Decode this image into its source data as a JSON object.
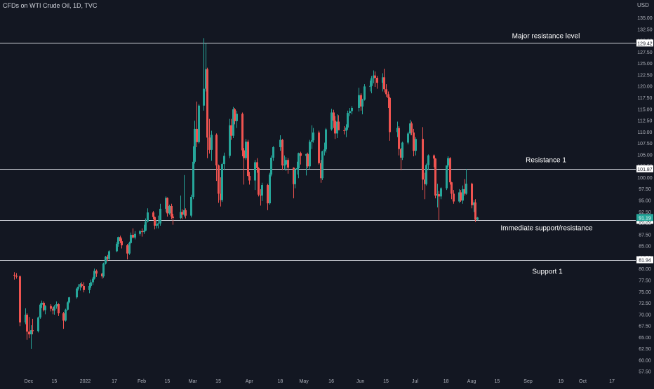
{
  "header": {
    "symbol_title": "CFDs on WTI Crude Oil, 1D, TVC",
    "currency": "USD"
  },
  "colors": {
    "background": "#131722",
    "up": "#26a69a",
    "down": "#ef5350",
    "text": "#d1d4dc",
    "axis_text": "#b2b5be",
    "level_line": "#d1d4dc",
    "last_price_bg": "#26a69a"
  },
  "chart_data": {
    "type": "candlestick",
    "ylim": [
      56,
      136
    ],
    "y_ticks": [
      57.5,
      60.0,
      62.5,
      65.0,
      67.5,
      70.0,
      72.5,
      75.0,
      77.5,
      80.0,
      82.5,
      85.0,
      87.5,
      90.0,
      92.5,
      95.0,
      97.5,
      100.0,
      102.5,
      105.0,
      107.5,
      110.0,
      112.5,
      115.0,
      117.5,
      120.0,
      122.5,
      125.0,
      127.5,
      130.0,
      132.5,
      135.0
    ],
    "x_ticks": [
      {
        "label": "Dec",
        "date": "2021-12-01"
      },
      {
        "label": "15",
        "date": "2021-12-15"
      },
      {
        "label": "2022",
        "date": "2022-01-01"
      },
      {
        "label": "17",
        "date": "2022-01-17"
      },
      {
        "label": "Feb",
        "date": "2022-02-01"
      },
      {
        "label": "15",
        "date": "2022-02-15"
      },
      {
        "label": "Mar",
        "date": "2022-03-01"
      },
      {
        "label": "15",
        "date": "2022-03-15"
      },
      {
        "label": "Apr",
        "date": "2022-04-01"
      },
      {
        "label": "18",
        "date": "2022-04-18"
      },
      {
        "label": "May",
        "date": "2022-05-01"
      },
      {
        "label": "16",
        "date": "2022-05-16"
      },
      {
        "label": "Jun",
        "date": "2022-06-01"
      },
      {
        "label": "15",
        "date": "2022-06-15"
      },
      {
        "label": "Jul",
        "date": "2022-07-01"
      },
      {
        "label": "18",
        "date": "2022-07-18"
      },
      {
        "label": "Aug",
        "date": "2022-08-01"
      },
      {
        "label": "15",
        "date": "2022-08-15"
      },
      {
        "label": "Sep",
        "date": "2022-09-01"
      },
      {
        "label": "19",
        "date": "2022-09-19"
      },
      {
        "label": "Oct",
        "date": "2022-10-01"
      },
      {
        "label": "17",
        "date": "2022-10-17"
      }
    ],
    "levels": [
      {
        "name": "Major resistance level",
        "value": 129.42,
        "label": "129.42"
      },
      {
        "name": "Resistance 1",
        "value": 101.87,
        "label": "101.87"
      },
      {
        "name": "Immediate support/resistance",
        "value": 90.58,
        "label": "90.58"
      },
      {
        "name": "Support 1",
        "value": 81.94,
        "label": "81.94"
      }
    ],
    "last_price": {
      "value": 91.19,
      "label": "91.19"
    },
    "candles": [
      [
        "2021-11-23",
        78.6,
        79.2,
        77.6,
        78.4
      ],
      [
        "2021-11-24",
        78.4,
        79.0,
        77.8,
        78.3
      ],
      [
        "2021-11-26",
        78.3,
        78.5,
        67.4,
        68.2
      ],
      [
        "2021-11-29",
        68.2,
        71.3,
        67.8,
        69.9
      ],
      [
        "2021-11-30",
        69.9,
        70.2,
        64.4,
        66.2
      ],
      [
        "2021-12-01",
        66.2,
        69.4,
        64.8,
        65.6
      ],
      [
        "2021-12-02",
        65.6,
        67.6,
        62.4,
        66.5
      ],
      [
        "2021-12-03",
        66.5,
        69.0,
        65.6,
        66.3
      ],
      [
        "2021-12-06",
        66.3,
        69.5,
        66.0,
        69.3
      ],
      [
        "2021-12-07",
        69.3,
        72.4,
        69.0,
        72.1
      ],
      [
        "2021-12-08",
        72.1,
        73.0,
        71.4,
        72.5
      ],
      [
        "2021-12-09",
        72.5,
        72.8,
        70.6,
        70.9
      ],
      [
        "2021-12-10",
        70.9,
        72.0,
        70.0,
        71.8
      ],
      [
        "2021-12-13",
        71.8,
        72.2,
        70.6,
        71.2
      ],
      [
        "2021-12-14",
        71.2,
        71.6,
        70.0,
        70.8
      ],
      [
        "2021-12-15",
        70.8,
        72.0,
        69.9,
        71.7
      ],
      [
        "2021-12-16",
        71.7,
        72.8,
        71.2,
        72.2
      ],
      [
        "2021-12-17",
        72.2,
        72.4,
        69.6,
        70.2
      ],
      [
        "2021-12-20",
        70.2,
        70.5,
        66.8,
        68.6
      ],
      [
        "2021-12-21",
        68.6,
        71.2,
        68.4,
        71.0
      ],
      [
        "2021-12-22",
        71.0,
        72.8,
        70.8,
        72.6
      ],
      [
        "2021-12-23",
        72.6,
        73.8,
        72.4,
        73.7
      ],
      [
        "2021-12-27",
        73.7,
        75.8,
        73.4,
        75.6
      ],
      [
        "2021-12-28",
        75.6,
        76.6,
        75.2,
        76.0
      ],
      [
        "2021-12-29",
        76.0,
        76.8,
        75.2,
        76.6
      ],
      [
        "2021-12-30",
        76.6,
        77.0,
        75.8,
        76.2
      ],
      [
        "2021-12-31",
        76.2,
        77.0,
        74.8,
        75.3
      ],
      [
        "2022-01-03",
        75.3,
        76.8,
        74.6,
        76.2
      ],
      [
        "2022-01-04",
        76.2,
        77.6,
        75.8,
        77.0
      ],
      [
        "2022-01-05",
        77.0,
        78.2,
        76.4,
        77.8
      ],
      [
        "2022-01-06",
        77.8,
        80.0,
        77.6,
        79.5
      ],
      [
        "2022-01-07",
        79.5,
        79.8,
        78.2,
        78.9
      ],
      [
        "2022-01-10",
        78.9,
        79.0,
        77.8,
        78.3
      ],
      [
        "2022-01-11",
        78.3,
        81.3,
        78.0,
        81.1
      ],
      [
        "2022-01-12",
        81.1,
        82.8,
        80.9,
        82.6
      ],
      [
        "2022-01-13",
        82.6,
        83.0,
        81.6,
        82.1
      ],
      [
        "2022-01-14",
        82.1,
        84.0,
        81.9,
        83.8
      ],
      [
        "2022-01-18",
        83.8,
        85.8,
        83.6,
        85.4
      ],
      [
        "2022-01-19",
        85.4,
        87.0,
        84.8,
        86.9
      ],
      [
        "2022-01-20",
        86.9,
        87.2,
        85.6,
        86.0
      ],
      [
        "2022-01-21",
        86.0,
        86.6,
        84.4,
        85.1
      ],
      [
        "2022-01-24",
        85.1,
        85.4,
        82.0,
        83.3
      ],
      [
        "2022-01-25",
        83.3,
        85.9,
        83.0,
        85.6
      ],
      [
        "2022-01-26",
        85.6,
        87.9,
        85.5,
        87.4
      ],
      [
        "2022-01-27",
        87.4,
        88.8,
        86.6,
        86.8
      ],
      [
        "2022-01-28",
        86.8,
        88.2,
        86.4,
        87.6
      ],
      [
        "2022-01-31",
        87.6,
        88.4,
        87.2,
        88.2
      ],
      [
        "2022-02-01",
        88.2,
        88.8,
        87.0,
        88.0
      ],
      [
        "2022-02-02",
        88.0,
        89.6,
        87.6,
        88.3
      ],
      [
        "2022-02-03",
        88.3,
        91.0,
        88.2,
        90.3
      ],
      [
        "2022-02-04",
        90.3,
        93.2,
        90.1,
        92.3
      ],
      [
        "2022-02-07",
        92.3,
        92.6,
        90.8,
        91.3
      ],
      [
        "2022-02-08",
        91.3,
        91.4,
        88.6,
        89.4
      ],
      [
        "2022-02-09",
        89.4,
        90.6,
        88.8,
        89.7
      ],
      [
        "2022-02-10",
        89.7,
        91.6,
        88.8,
        89.9
      ],
      [
        "2022-02-11",
        89.9,
        94.2,
        89.4,
        93.1
      ],
      [
        "2022-02-14",
        93.1,
        95.8,
        92.4,
        95.5
      ],
      [
        "2022-02-15",
        95.5,
        95.6,
        91.4,
        92.1
      ],
      [
        "2022-02-16",
        92.1,
        94.0,
        91.8,
        93.7
      ],
      [
        "2022-02-17",
        93.7,
        94.2,
        90.8,
        91.4
      ],
      [
        "2022-02-18",
        91.4,
        92.0,
        89.6,
        91.1
      ],
      [
        "2022-02-22",
        91.1,
        96.0,
        90.8,
        92.4
      ],
      [
        "2022-02-23",
        92.4,
        93.0,
        90.8,
        91.8
      ],
      [
        "2022-02-24",
        91.8,
        100.5,
        91.3,
        92.8
      ],
      [
        "2022-02-25",
        92.8,
        93.2,
        91.0,
        91.6
      ],
      [
        "2022-02-28",
        91.6,
        96.2,
        91.2,
        95.7
      ],
      [
        "2022-03-01",
        95.7,
        106.8,
        95.2,
        103.4
      ],
      [
        "2022-03-02",
        103.4,
        112.4,
        103.0,
        110.6
      ],
      [
        "2022-03-03",
        110.6,
        116.6,
        106.6,
        107.7
      ],
      [
        "2022-03-04",
        107.7,
        116.0,
        107.4,
        115.7
      ],
      [
        "2022-03-07",
        115.7,
        130.5,
        114.6,
        119.4
      ],
      [
        "2022-03-08",
        119.4,
        129.4,
        118.8,
        123.7
      ],
      [
        "2022-03-09",
        123.7,
        124.0,
        104.2,
        108.7
      ],
      [
        "2022-03-10",
        108.7,
        112.8,
        105.2,
        106.0
      ],
      [
        "2022-03-11",
        106.0,
        110.2,
        103.6,
        109.3
      ],
      [
        "2022-03-14",
        109.3,
        109.6,
        99.2,
        102.6
      ],
      [
        "2022-03-15",
        102.6,
        102.8,
        94.4,
        96.4
      ],
      [
        "2022-03-16",
        96.4,
        100.0,
        93.6,
        95.0
      ],
      [
        "2022-03-17",
        95.0,
        103.2,
        94.6,
        102.9
      ],
      [
        "2022-03-18",
        102.9,
        105.4,
        101.6,
        104.7
      ],
      [
        "2022-03-21",
        104.7,
        112.8,
        104.2,
        111.4
      ],
      [
        "2022-03-22",
        111.4,
        112.8,
        108.2,
        109.1
      ],
      [
        "2022-03-23",
        109.1,
        115.4,
        108.6,
        114.9
      ],
      [
        "2022-03-24",
        114.9,
        115.2,
        111.6,
        112.3
      ],
      [
        "2022-03-25",
        112.3,
        114.6,
        110.8,
        113.9
      ],
      [
        "2022-03-28",
        113.9,
        114.2,
        104.6,
        105.9
      ],
      [
        "2022-03-29",
        105.9,
        106.4,
        98.4,
        104.2
      ],
      [
        "2022-03-30",
        104.2,
        108.4,
        103.8,
        107.8
      ],
      [
        "2022-03-31",
        107.8,
        108.2,
        100.2,
        100.3
      ],
      [
        "2022-04-01",
        100.3,
        101.2,
        98.4,
        99.3
      ],
      [
        "2022-04-04",
        99.3,
        103.8,
        97.2,
        103.3
      ],
      [
        "2022-04-05",
        103.3,
        104.2,
        101.0,
        102.0
      ],
      [
        "2022-04-06",
        102.0,
        102.2,
        95.8,
        96.2
      ],
      [
        "2022-04-07",
        96.2,
        97.4,
        93.8,
        96.0
      ],
      [
        "2022-04-08",
        96.0,
        98.8,
        94.8,
        98.3
      ],
      [
        "2022-04-11",
        98.3,
        98.6,
        92.8,
        94.3
      ],
      [
        "2022-04-12",
        94.3,
        101.0,
        94.0,
        100.6
      ],
      [
        "2022-04-13",
        100.6,
        104.8,
        100.2,
        104.3
      ],
      [
        "2022-04-14",
        104.3,
        106.8,
        103.6,
        106.6
      ],
      [
        "2022-04-18",
        106.6,
        109.2,
        105.8,
        108.2
      ],
      [
        "2022-04-19",
        108.2,
        108.4,
        101.6,
        102.6
      ],
      [
        "2022-04-20",
        102.6,
        104.8,
        101.8,
        102.8
      ],
      [
        "2022-04-21",
        102.8,
        104.4,
        101.4,
        103.8
      ],
      [
        "2022-04-22",
        103.8,
        104.2,
        100.8,
        102.1
      ],
      [
        "2022-04-25",
        102.1,
        102.2,
        95.4,
        98.5
      ],
      [
        "2022-04-26",
        98.5,
        102.0,
        97.6,
        101.7
      ],
      [
        "2022-04-27",
        101.7,
        103.4,
        100.6,
        102.0
      ],
      [
        "2022-04-28",
        102.0,
        105.4,
        99.8,
        105.3
      ],
      [
        "2022-04-29",
        105.3,
        105.6,
        102.8,
        104.7
      ],
      [
        "2022-05-02",
        104.7,
        105.2,
        100.4,
        105.1
      ],
      [
        "2022-05-03",
        105.1,
        105.4,
        102.0,
        102.4
      ],
      [
        "2022-05-04",
        102.4,
        108.2,
        101.8,
        107.8
      ],
      [
        "2022-05-05",
        107.8,
        111.4,
        106.2,
        108.1
      ],
      [
        "2022-05-06",
        108.1,
        110.8,
        107.6,
        109.8
      ],
      [
        "2022-05-09",
        109.8,
        110.2,
        102.8,
        103.1
      ],
      [
        "2022-05-10",
        103.1,
        103.8,
        98.8,
        99.8
      ],
      [
        "2022-05-11",
        99.8,
        105.8,
        99.4,
        105.7
      ],
      [
        "2022-05-12",
        105.7,
        107.6,
        104.8,
        106.1
      ],
      [
        "2022-05-13",
        106.1,
        110.8,
        105.4,
        110.5
      ],
      [
        "2022-05-16",
        110.5,
        115.0,
        110.2,
        114.2
      ],
      [
        "2022-05-17",
        114.2,
        114.8,
        110.8,
        112.4
      ],
      [
        "2022-05-18",
        112.4,
        113.4,
        108.4,
        109.6
      ],
      [
        "2022-05-19",
        109.6,
        113.8,
        108.6,
        112.2
      ],
      [
        "2022-05-20",
        112.2,
        113.6,
        110.6,
        110.3
      ],
      [
        "2022-05-23",
        110.3,
        111.2,
        109.4,
        110.2
      ],
      [
        "2022-05-24",
        110.2,
        111.6,
        108.8,
        110.9
      ],
      [
        "2022-05-25",
        110.9,
        114.6,
        110.4,
        114.1
      ],
      [
        "2022-05-26",
        114.1,
        115.2,
        113.4,
        114.5
      ],
      [
        "2022-05-27",
        114.5,
        115.6,
        113.8,
        115.2
      ],
      [
        "2022-05-31",
        115.2,
        119.6,
        114.4,
        118.0
      ],
      [
        "2022-06-01",
        118.0,
        118.4,
        114.6,
        115.5
      ],
      [
        "2022-06-02",
        115.5,
        117.2,
        113.8,
        117.0
      ],
      [
        "2022-06-03",
        117.0,
        120.4,
        116.8,
        119.9
      ],
      [
        "2022-06-06",
        119.9,
        121.2,
        118.8,
        120.0
      ],
      [
        "2022-06-07",
        120.0,
        122.2,
        118.4,
        121.7
      ],
      [
        "2022-06-08",
        121.7,
        123.4,
        120.6,
        122.3
      ],
      [
        "2022-06-09",
        122.3,
        123.2,
        119.8,
        121.8
      ],
      [
        "2022-06-10",
        121.8,
        122.2,
        119.4,
        120.7
      ],
      [
        "2022-06-13",
        120.7,
        122.8,
        118.8,
        121.9
      ],
      [
        "2022-06-14",
        121.9,
        123.8,
        118.6,
        119.3
      ],
      [
        "2022-06-15",
        119.3,
        120.4,
        117.6,
        118.2
      ],
      [
        "2022-06-16",
        118.2,
        118.8,
        115.2,
        117.4
      ],
      [
        "2022-06-17",
        117.4,
        117.6,
        108.0,
        109.9
      ],
      [
        "2022-06-21",
        109.9,
        112.2,
        108.8,
        110.8
      ],
      [
        "2022-06-22",
        110.8,
        111.2,
        104.8,
        106.2
      ],
      [
        "2022-06-23",
        106.2,
        106.4,
        101.6,
        104.3
      ],
      [
        "2022-06-24",
        104.3,
        107.8,
        103.8,
        107.6
      ],
      [
        "2022-06-27",
        107.6,
        110.0,
        107.2,
        109.6
      ],
      [
        "2022-06-28",
        109.6,
        112.6,
        109.2,
        111.8
      ],
      [
        "2022-06-29",
        111.8,
        112.2,
        109.2,
        109.8
      ],
      [
        "2022-06-30",
        109.8,
        110.6,
        104.6,
        105.8
      ],
      [
        "2022-07-01",
        105.8,
        108.8,
        104.8,
        108.4
      ],
      [
        "2022-07-05",
        108.4,
        111.0,
        97.2,
        99.5
      ],
      [
        "2022-07-06",
        99.5,
        101.0,
        95.2,
        98.5
      ],
      [
        "2022-07-07",
        98.5,
        103.0,
        98.2,
        102.7
      ],
      [
        "2022-07-08",
        102.7,
        105.0,
        101.6,
        104.8
      ],
      [
        "2022-07-11",
        104.8,
        105.0,
        102.2,
        104.1
      ],
      [
        "2022-07-12",
        104.1,
        104.2,
        95.4,
        96.0
      ],
      [
        "2022-07-13",
        96.0,
        98.6,
        93.4,
        96.3
      ],
      [
        "2022-07-14",
        96.3,
        97.0,
        90.6,
        95.8
      ],
      [
        "2022-07-15",
        95.8,
        97.8,
        95.2,
        97.6
      ],
      [
        "2022-07-18",
        97.6,
        102.4,
        97.2,
        102.6
      ],
      [
        "2022-07-19",
        102.6,
        104.6,
        102.2,
        104.2
      ],
      [
        "2022-07-20",
        104.2,
        104.4,
        98.4,
        98.9
      ],
      [
        "2022-07-21",
        98.9,
        99.0,
        95.2,
        96.4
      ],
      [
        "2022-07-22",
        96.4,
        97.2,
        94.2,
        94.7
      ],
      [
        "2022-07-25",
        94.7,
        97.4,
        94.4,
        96.7
      ],
      [
        "2022-07-26",
        96.7,
        97.2,
        94.6,
        94.9
      ],
      [
        "2022-07-27",
        94.9,
        98.2,
        94.2,
        97.4
      ],
      [
        "2022-07-28",
        97.4,
        99.6,
        96.0,
        96.4
      ],
      [
        "2022-07-29",
        96.4,
        101.8,
        96.2,
        98.6
      ],
      [
        "2022-08-01",
        98.6,
        98.8,
        93.2,
        93.9
      ],
      [
        "2022-08-02",
        93.9,
        95.0,
        92.4,
        94.5
      ],
      [
        "2022-08-03",
        94.5,
        95.2,
        90.2,
        90.7
      ],
      [
        "2022-08-04",
        90.7,
        91.3,
        90.6,
        91.19
      ]
    ]
  }
}
